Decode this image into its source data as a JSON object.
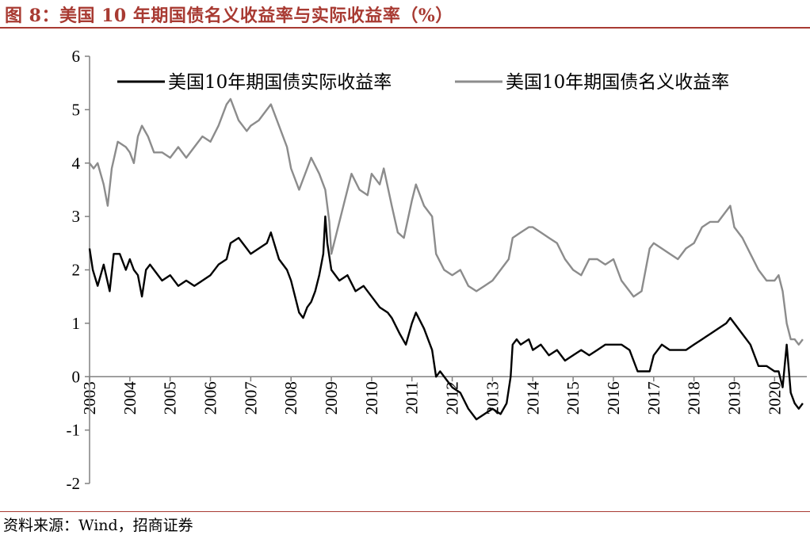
{
  "figure": {
    "title": "图 8：美国 10 年期国债名义收益率与实际收益率（%）",
    "source": "资料来源：Wind，招商证券"
  },
  "colors": {
    "accent": "#a83a32",
    "real_yield_line": "#000000",
    "nominal_yield_line": "#8c8c8c",
    "axis": "#808080"
  },
  "chart_data": {
    "type": "line",
    "title": "",
    "xlabel": "",
    "ylabel": "",
    "xlim": [
      2003,
      2020.8
    ],
    "ylim": [
      -2,
      6
    ],
    "yticks": [
      -2,
      -1,
      0,
      1,
      2,
      3,
      4,
      5,
      6
    ],
    "xticks": [
      "2003",
      "2004",
      "2005",
      "2006",
      "2007",
      "2008",
      "2009",
      "2010",
      "2011",
      "2012",
      "2013",
      "2014",
      "2015",
      "2016",
      "2017",
      "2018",
      "2019",
      "2020"
    ],
    "grid": false,
    "legend_position": "top",
    "series": [
      {
        "name": "美国10年期国债实际收益率",
        "color": "#000000",
        "x": [
          2003.0,
          2003.08,
          2003.2,
          2003.35,
          2003.5,
          2003.6,
          2003.75,
          2003.9,
          2004.0,
          2004.1,
          2004.2,
          2004.3,
          2004.4,
          2004.5,
          2004.6,
          2004.8,
          2005.0,
          2005.2,
          2005.4,
          2005.6,
          2005.8,
          2006.0,
          2006.2,
          2006.4,
          2006.5,
          2006.7,
          2006.9,
          2007.0,
          2007.2,
          2007.4,
          2007.5,
          2007.7,
          2007.9,
          2008.0,
          2008.1,
          2008.2,
          2008.3,
          2008.4,
          2008.5,
          2008.6,
          2008.7,
          2008.8,
          2008.85,
          2008.9,
          2009.0,
          2009.2,
          2009.4,
          2009.6,
          2009.8,
          2010.0,
          2010.2,
          2010.4,
          2010.5,
          2010.7,
          2010.85,
          2011.0,
          2011.1,
          2011.3,
          2011.5,
          2011.6,
          2011.7,
          2011.9,
          2012.0,
          2012.2,
          2012.4,
          2012.6,
          2012.8,
          2013.0,
          2013.2,
          2013.35,
          2013.45,
          2013.5,
          2013.6,
          2013.7,
          2013.9,
          2014.0,
          2014.2,
          2014.4,
          2014.6,
          2014.8,
          2015.0,
          2015.2,
          2015.4,
          2015.6,
          2015.8,
          2016.0,
          2016.2,
          2016.4,
          2016.6,
          2016.8,
          2016.9,
          2017.0,
          2017.2,
          2017.4,
          2017.6,
          2017.8,
          2018.0,
          2018.2,
          2018.4,
          2018.6,
          2018.8,
          2018.9,
          2019.0,
          2019.2,
          2019.4,
          2019.6,
          2019.8,
          2020.0,
          2020.1,
          2020.2,
          2020.25,
          2020.3,
          2020.4,
          2020.5,
          2020.6,
          2020.7
        ],
        "y": [
          2.4,
          2.0,
          1.7,
          2.1,
          1.6,
          2.3,
          2.3,
          2.0,
          2.2,
          2.0,
          1.9,
          1.5,
          2.0,
          2.1,
          2.0,
          1.8,
          1.9,
          1.7,
          1.8,
          1.7,
          1.8,
          1.9,
          2.1,
          2.2,
          2.5,
          2.6,
          2.4,
          2.3,
          2.4,
          2.5,
          2.7,
          2.2,
          2.0,
          1.8,
          1.5,
          1.2,
          1.1,
          1.3,
          1.4,
          1.6,
          1.9,
          2.3,
          3.0,
          2.5,
          2.0,
          1.8,
          1.9,
          1.6,
          1.7,
          1.5,
          1.3,
          1.2,
          1.1,
          0.8,
          0.6,
          1.0,
          1.2,
          0.9,
          0.5,
          0.0,
          0.1,
          -0.1,
          -0.2,
          -0.3,
          -0.6,
          -0.8,
          -0.7,
          -0.6,
          -0.7,
          -0.5,
          0.0,
          0.6,
          0.7,
          0.6,
          0.7,
          0.5,
          0.6,
          0.4,
          0.5,
          0.3,
          0.4,
          0.5,
          0.4,
          0.5,
          0.6,
          0.6,
          0.6,
          0.5,
          0.1,
          0.1,
          0.1,
          0.4,
          0.6,
          0.5,
          0.5,
          0.5,
          0.6,
          0.7,
          0.8,
          0.9,
          1.0,
          1.1,
          1.0,
          0.8,
          0.6,
          0.2,
          0.2,
          0.1,
          0.1,
          -0.2,
          0.2,
          0.6,
          -0.3,
          -0.5,
          -0.6,
          -0.5
        ]
      },
      {
        "name": "美国10年期国债名义收益率",
        "color": "#8c8c8c",
        "x": [
          2003.0,
          2003.1,
          2003.2,
          2003.35,
          2003.45,
          2003.55,
          2003.7,
          2003.9,
          2004.0,
          2004.1,
          2004.2,
          2004.3,
          2004.45,
          2004.6,
          2004.8,
          2005.0,
          2005.2,
          2005.4,
          2005.6,
          2005.8,
          2006.0,
          2006.2,
          2006.4,
          2006.5,
          2006.7,
          2006.9,
          2007.0,
          2007.2,
          2007.4,
          2007.5,
          2007.7,
          2007.9,
          2008.0,
          2008.2,
          2008.4,
          2008.5,
          2008.7,
          2008.85,
          2008.95,
          2009.0,
          2009.2,
          2009.4,
          2009.5,
          2009.7,
          2009.9,
          2010.0,
          2010.2,
          2010.3,
          2010.5,
          2010.65,
          2010.8,
          2011.0,
          2011.1,
          2011.3,
          2011.5,
          2011.6,
          2011.8,
          2012.0,
          2012.2,
          2012.4,
          2012.6,
          2012.8,
          2013.0,
          2013.2,
          2013.4,
          2013.5,
          2013.7,
          2013.9,
          2014.0,
          2014.2,
          2014.4,
          2014.6,
          2014.8,
          2015.0,
          2015.2,
          2015.4,
          2015.6,
          2015.8,
          2016.0,
          2016.2,
          2016.4,
          2016.5,
          2016.7,
          2016.9,
          2017.0,
          2017.2,
          2017.4,
          2017.6,
          2017.8,
          2018.0,
          2018.2,
          2018.4,
          2018.6,
          2018.8,
          2018.9,
          2019.0,
          2019.2,
          2019.4,
          2019.6,
          2019.8,
          2020.0,
          2020.1,
          2020.2,
          2020.3,
          2020.4,
          2020.5,
          2020.6,
          2020.7
        ],
        "y": [
          4.0,
          3.9,
          4.0,
          3.6,
          3.2,
          3.9,
          4.4,
          4.3,
          4.2,
          4.0,
          4.5,
          4.7,
          4.5,
          4.2,
          4.2,
          4.1,
          4.3,
          4.1,
          4.3,
          4.5,
          4.4,
          4.7,
          5.1,
          5.2,
          4.8,
          4.6,
          4.7,
          4.8,
          5.0,
          5.1,
          4.7,
          4.3,
          3.9,
          3.5,
          3.9,
          4.1,
          3.8,
          3.5,
          2.9,
          2.3,
          2.9,
          3.5,
          3.8,
          3.5,
          3.4,
          3.8,
          3.6,
          3.9,
          3.2,
          2.7,
          2.6,
          3.3,
          3.6,
          3.2,
          3.0,
          2.3,
          2.0,
          1.9,
          2.0,
          1.7,
          1.6,
          1.7,
          1.8,
          2.0,
          2.2,
          2.6,
          2.7,
          2.8,
          2.8,
          2.7,
          2.6,
          2.5,
          2.2,
          2.0,
          1.9,
          2.2,
          2.2,
          2.1,
          2.2,
          1.8,
          1.6,
          1.5,
          1.6,
          2.4,
          2.5,
          2.4,
          2.3,
          2.2,
          2.4,
          2.5,
          2.8,
          2.9,
          2.9,
          3.1,
          3.2,
          2.8,
          2.6,
          2.3,
          2.0,
          1.8,
          1.8,
          1.9,
          1.6,
          1.0,
          0.7,
          0.7,
          0.6,
          0.7
        ]
      }
    ]
  }
}
